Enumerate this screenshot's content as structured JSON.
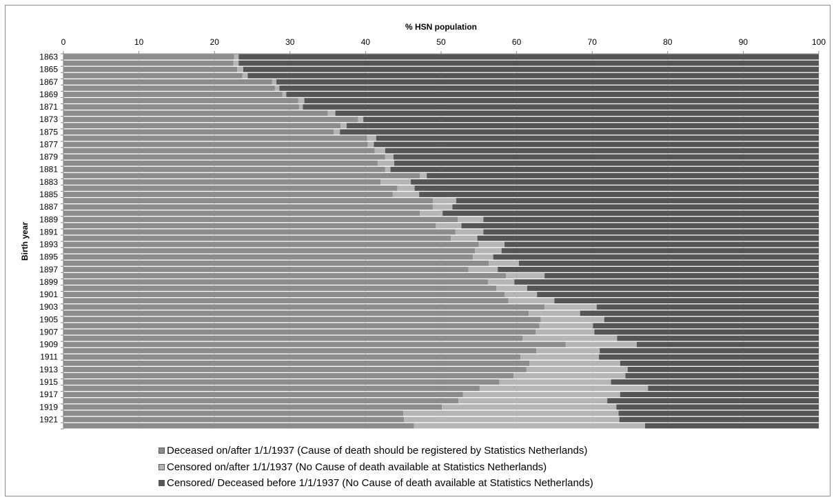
{
  "chart_data": {
    "type": "bar",
    "orientation": "horizontal",
    "stacked": true,
    "title": "% HSN population",
    "xlabel": "% HSN population",
    "ylabel": "Birth year",
    "xlim": [
      0,
      100
    ],
    "x_ticks": [
      "0",
      "10",
      "20",
      "30",
      "40",
      "50",
      "60",
      "70",
      "80",
      "90",
      "100"
    ],
    "x_axis_position": "top",
    "grid": "vertical",
    "legend_position": "bottom",
    "categories": [
      "1863",
      "1864",
      "1865",
      "1866",
      "1867",
      "1868",
      "1869",
      "1870",
      "1871",
      "1872",
      "1873",
      "1874",
      "1875",
      "1876",
      "1877",
      "1878",
      "1879",
      "1880",
      "1881",
      "1882",
      "1883",
      "1884",
      "1885",
      "1886",
      "1887",
      "1888",
      "1889",
      "1890",
      "1891",
      "1892",
      "1893",
      "1894",
      "1895",
      "1896",
      "1897",
      "1898",
      "1899",
      "1900",
      "1901",
      "1902",
      "1903",
      "1904",
      "1905",
      "1906",
      "1907",
      "1908",
      "1909",
      "1910",
      "1911",
      "1912",
      "1913",
      "1914",
      "1915",
      "1916",
      "1917",
      "1918",
      "1919",
      "1920",
      "1921",
      "1922"
    ],
    "category_labels": [
      "1863",
      "",
      "1865",
      "",
      "1867",
      "",
      "1869",
      "",
      "1871",
      "",
      "1873",
      "",
      "1875",
      "",
      "1877",
      "",
      "1879",
      "",
      "1881",
      "",
      "1883",
      "",
      "1885",
      "",
      "1887",
      "",
      "1889",
      "",
      "1891",
      "",
      "1893",
      "",
      "1895",
      "",
      "1897",
      "",
      "1899",
      "",
      "1901",
      "",
      "1903",
      "",
      "1905",
      "",
      "1907",
      "",
      "1909",
      "",
      "1911",
      "",
      "1913",
      "",
      "1915",
      "",
      "1917",
      "",
      "1919",
      "",
      "1921",
      ""
    ],
    "series": [
      {
        "name": "Deceased on/after 1/1/1937 (Cause of death should be registered by Statistics Netherlands)",
        "color": "#8c8c8c",
        "values": [
          22.6,
          22.5,
          23.0,
          23.7,
          27.6,
          28.0,
          29.0,
          31.1,
          31.2,
          35.0,
          39.0,
          36.7,
          35.8,
          40.2,
          40.3,
          41.2,
          42.6,
          41.6,
          42.6,
          47.2,
          42.0,
          44.2,
          43.6,
          48.9,
          48.9,
          47.2,
          52.2,
          49.3,
          51.9,
          51.3,
          55.0,
          54.5,
          54.2,
          56.3,
          53.6,
          58.6,
          56.2,
          57.3,
          58.4,
          58.9,
          63.7,
          61.6,
          63.2,
          63.0,
          62.5,
          60.8,
          66.5,
          62.6,
          60.5,
          61.7,
          61.3,
          59.6,
          57.7,
          55.1,
          52.9,
          52.3,
          50.1,
          45.0,
          45.1,
          46.4
        ]
      },
      {
        "name": "Censored on/after 1/1/1937 (No Cause of death available at Statistics Netherlands)",
        "color": "#b5b5b5",
        "values": [
          0.6,
          0.7,
          0.8,
          0.7,
          0.6,
          0.6,
          0.5,
          0.8,
          0.5,
          1.0,
          0.7,
          0.8,
          0.8,
          1.2,
          0.8,
          1.4,
          1.1,
          2.2,
          0.7,
          0.9,
          4.0,
          2.3,
          3.5,
          3.1,
          2.6,
          3.0,
          3.4,
          3.4,
          3.7,
          3.5,
          3.4,
          3.5,
          2.7,
          4.0,
          3.9,
          5.1,
          3.5,
          4.1,
          4.3,
          6.1,
          6.9,
          6.8,
          8.4,
          7.1,
          7.8,
          12.5,
          9.4,
          8.4,
          10.4,
          12.0,
          13.4,
          14.8,
          14.8,
          22.3,
          20.8,
          19.7,
          23.1,
          28.5,
          28.5,
          30.6
        ]
      },
      {
        "name": "Censored/ Deceased before 1/1/1937 (No Cause of death available at Statistics Netherlands)",
        "color": "#555555",
        "values": [
          76.8,
          76.8,
          76.2,
          75.6,
          71.8,
          71.4,
          70.5,
          68.1,
          68.3,
          64.0,
          60.3,
          62.5,
          63.4,
          58.6,
          58.9,
          57.4,
          56.3,
          56.2,
          56.7,
          51.9,
          54.0,
          53.5,
          52.9,
          48.0,
          48.5,
          49.8,
          44.4,
          47.3,
          44.4,
          45.2,
          41.6,
          42.0,
          43.1,
          39.7,
          42.5,
          36.3,
          40.3,
          38.6,
          37.3,
          35.0,
          29.4,
          31.6,
          28.4,
          29.9,
          29.7,
          26.7,
          24.1,
          29.0,
          29.1,
          26.3,
          25.3,
          25.6,
          27.5,
          22.6,
          26.3,
          28.0,
          26.8,
          26.5,
          26.4,
          23.0
        ]
      }
    ]
  }
}
